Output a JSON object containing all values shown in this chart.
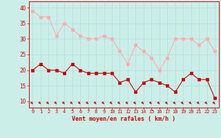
{
  "x": [
    0,
    1,
    2,
    3,
    4,
    5,
    6,
    7,
    8,
    9,
    10,
    11,
    12,
    13,
    14,
    15,
    16,
    17,
    18,
    19,
    20,
    21,
    22,
    23
  ],
  "wind_avg": [
    20,
    22,
    20,
    20,
    19,
    22,
    20,
    19,
    19,
    19,
    19,
    16,
    17,
    13,
    16,
    17,
    16,
    15,
    13,
    17,
    19,
    17,
    17,
    11
  ],
  "wind_gust": [
    39,
    37,
    37,
    31,
    35,
    33,
    31,
    30,
    30,
    31,
    30,
    26,
    22,
    28,
    26,
    24,
    20,
    24,
    30,
    30,
    30,
    28,
    30,
    26
  ],
  "xlabel": "Vent moyen/en rafales ( km/h )",
  "xlim": [
    -0.5,
    23.5
  ],
  "ylim": [
    8,
    42
  ],
  "yticks": [
    10,
    15,
    20,
    25,
    30,
    35,
    40
  ],
  "xticks": [
    0,
    1,
    2,
    3,
    4,
    5,
    6,
    7,
    8,
    9,
    10,
    11,
    12,
    13,
    14,
    15,
    16,
    17,
    18,
    19,
    20,
    21,
    22,
    23
  ],
  "avg_color": "#cc0000",
  "gust_color": "#ffaaaa",
  "bg_color": "#cceee8",
  "grid_color": "#aadddd",
  "marker_size": 2.5,
  "line_width": 0.8,
  "arrow_color": "#cc0000"
}
